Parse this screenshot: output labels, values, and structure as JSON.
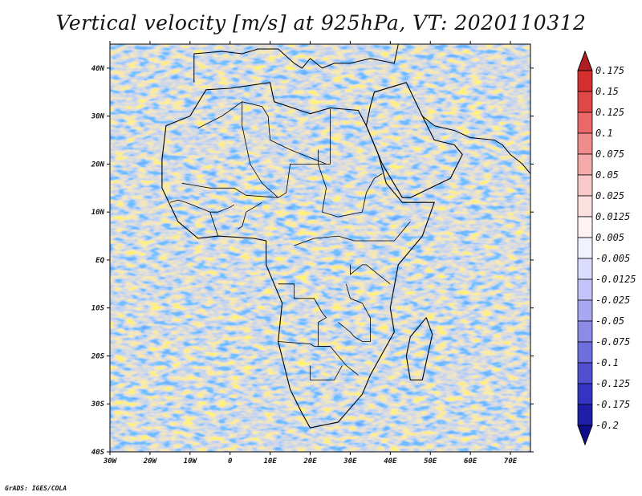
{
  "title": "Vertical velocity [m/s] at 925hPa, VT: 2020110312",
  "credit": "GrADS: IGES/COLA",
  "map": {
    "lon_range": [
      -30,
      75
    ],
    "lat_range": [
      -40,
      45
    ],
    "lat_ticks": [
      {
        "value": 40,
        "label": "40N"
      },
      {
        "value": 30,
        "label": "30N"
      },
      {
        "value": 20,
        "label": "20N"
      },
      {
        "value": 10,
        "label": "10N"
      },
      {
        "value": 0,
        "label": "EQ"
      },
      {
        "value": -10,
        "label": "10S"
      },
      {
        "value": -20,
        "label": "20S"
      },
      {
        "value": -30,
        "label": "30S"
      },
      {
        "value": -40,
        "label": "40S"
      }
    ],
    "lon_ticks": [
      {
        "value": -30,
        "label": "30W"
      },
      {
        "value": -20,
        "label": "20W"
      },
      {
        "value": -10,
        "label": "10W"
      },
      {
        "value": 0,
        "label": "0"
      },
      {
        "value": 10,
        "label": "10E"
      },
      {
        "value": 20,
        "label": "20E"
      },
      {
        "value": 30,
        "label": "30E"
      },
      {
        "value": 40,
        "label": "40E"
      },
      {
        "value": 50,
        "label": "50E"
      },
      {
        "value": 60,
        "label": "60E"
      },
      {
        "value": 70,
        "label": "70E"
      }
    ],
    "africa_outline": [
      [
        -17,
        21
      ],
      [
        -16,
        28
      ],
      [
        -10,
        30
      ],
      [
        -6,
        35.5
      ],
      [
        0,
        35.8
      ],
      [
        10,
        37
      ],
      [
        11,
        33
      ],
      [
        20,
        30.5
      ],
      [
        25,
        31.7
      ],
      [
        32,
        31.2
      ],
      [
        34,
        28
      ],
      [
        37,
        22
      ],
      [
        39,
        16
      ],
      [
        43,
        12
      ],
      [
        51,
        12
      ],
      [
        48,
        5
      ],
      [
        42,
        -1
      ],
      [
        40,
        -10
      ],
      [
        41,
        -15
      ],
      [
        35,
        -24
      ],
      [
        33,
        -28
      ],
      [
        27,
        -33.8
      ],
      [
        20,
        -35
      ],
      [
        18,
        -32
      ],
      [
        15,
        -27
      ],
      [
        12,
        -17
      ],
      [
        13,
        -9
      ],
      [
        9,
        -1
      ],
      [
        9,
        4
      ],
      [
        6,
        4.5
      ],
      [
        -3,
        5
      ],
      [
        -8,
        4.5
      ],
      [
        -13,
        8
      ],
      [
        -17,
        15
      ],
      [
        -17,
        21
      ]
    ],
    "arabia_outline": [
      [
        34,
        28
      ],
      [
        35,
        32
      ],
      [
        36,
        35
      ],
      [
        44,
        37
      ],
      [
        48,
        30
      ],
      [
        51,
        25
      ],
      [
        56,
        24
      ],
      [
        58,
        22
      ],
      [
        55,
        17
      ],
      [
        45,
        13
      ],
      [
        43,
        13
      ],
      [
        38,
        20
      ],
      [
        34,
        28
      ]
    ],
    "europe_outline": [
      [
        -9,
        37
      ],
      [
        -9,
        43
      ],
      [
        -2,
        43.5
      ],
      [
        3,
        43
      ],
      [
        7,
        44
      ],
      [
        12,
        44
      ],
      [
        16,
        41
      ],
      [
        18,
        40
      ],
      [
        20,
        42
      ],
      [
        23,
        40
      ],
      [
        26,
        41
      ],
      [
        30,
        41
      ],
      [
        35,
        42
      ],
      [
        41,
        41
      ],
      [
        42,
        45
      ]
    ],
    "madagascar_outline": [
      [
        49,
        -12
      ],
      [
        50.5,
        -15.5
      ],
      [
        48,
        -25
      ],
      [
        45,
        -25
      ],
      [
        44,
        -20
      ],
      [
        45,
        -16
      ],
      [
        49,
        -12
      ]
    ],
    "iran_coast": [
      [
        48,
        30
      ],
      [
        51,
        28
      ],
      [
        56,
        27
      ],
      [
        60,
        25.5
      ],
      [
        66,
        25
      ],
      [
        68,
        24
      ],
      [
        70,
        22
      ],
      [
        73,
        20
      ],
      [
        75,
        18
      ]
    ],
    "borders": [
      [
        [
          -8,
          27.5
        ],
        [
          -2,
          30
        ],
        [
          3,
          33
        ],
        [
          8,
          32
        ],
        [
          9.5,
          30
        ],
        [
          10,
          25
        ],
        [
          15,
          23
        ],
        [
          24,
          20
        ],
        [
          25,
          20
        ],
        [
          25,
          22
        ],
        [
          25,
          31.5
        ]
      ],
      [
        [
          -12,
          16
        ],
        [
          -5,
          15
        ],
        [
          1,
          15
        ],
        [
          4,
          13.5
        ],
        [
          12,
          13
        ],
        [
          14,
          14
        ],
        [
          15,
          20
        ],
        [
          24,
          20
        ]
      ],
      [
        [
          22,
          23
        ],
        [
          22,
          20
        ],
        [
          24,
          15
        ],
        [
          23,
          10
        ],
        [
          27,
          9
        ],
        [
          33,
          10
        ],
        [
          34,
          14
        ],
        [
          36,
          17
        ],
        [
          38,
          18
        ]
      ],
      [
        [
          16,
          3
        ],
        [
          21,
          4.5
        ],
        [
          27,
          5
        ],
        [
          31,
          4
        ],
        [
          35,
          4
        ],
        [
          41,
          4
        ],
        [
          42,
          5
        ],
        [
          45,
          8
        ]
      ],
      [
        [
          12,
          -5
        ],
        [
          16,
          -5
        ],
        [
          16,
          -8
        ],
        [
          21,
          -8
        ],
        [
          23,
          -11
        ],
        [
          24,
          -12
        ],
        [
          22,
          -13
        ],
        [
          22,
          -18
        ],
        [
          25,
          -18
        ]
      ],
      [
        [
          12,
          -17
        ],
        [
          20,
          -17.5
        ],
        [
          21,
          -18
        ],
        [
          25,
          -18
        ],
        [
          29,
          -22
        ],
        [
          32,
          -24
        ]
      ],
      [
        [
          20,
          -22
        ],
        [
          20,
          -25
        ],
        [
          26,
          -25
        ],
        [
          28,
          -22
        ]
      ],
      [
        [
          30,
          -1
        ],
        [
          30,
          -3
        ],
        [
          33,
          -1
        ],
        [
          34,
          -1
        ],
        [
          37,
          -3
        ],
        [
          40,
          -5
        ]
      ],
      [
        [
          29,
          -5
        ],
        [
          30,
          -8
        ],
        [
          33,
          -9
        ],
        [
          35,
          -12
        ],
        [
          35,
          -17
        ],
        [
          33,
          -17
        ],
        [
          31,
          -16
        ],
        [
          30,
          -15
        ],
        [
          27,
          -13
        ]
      ],
      [
        [
          8,
          12
        ],
        [
          4,
          10
        ],
        [
          3,
          7
        ],
        [
          2,
          6.5
        ]
      ],
      [
        [
          -5,
          10
        ],
        [
          -3,
          10
        ],
        [
          0,
          11
        ],
        [
          1,
          11.5
        ]
      ],
      [
        [
          -15,
          12
        ],
        [
          -13,
          12.5
        ],
        [
          -11,
          12
        ],
        [
          -8,
          11
        ],
        [
          -5,
          10
        ],
        [
          -3,
          5
        ]
      ],
      [
        [
          3,
          33
        ],
        [
          3,
          28
        ],
        [
          5,
          20
        ],
        [
          8,
          16
        ],
        [
          12,
          13
        ]
      ]
    ]
  },
  "colorbar": {
    "colors": [
      "#b01e22",
      "#d43030",
      "#e04848",
      "#ea6868",
      "#f08c8c",
      "#f5aaaa",
      "#f9c8c8",
      "#fce0e0",
      "#fff2f2",
      "#f2f2ff",
      "#dcdcff",
      "#c4c4fa",
      "#a8a8f2",
      "#8c8ce8",
      "#6e6edc",
      "#5050d0",
      "#3434c2",
      "#1e1ea8",
      "#0e0e8a"
    ],
    "labels": [
      "0.175",
      "0.15",
      "0.125",
      "0.1",
      "0.075",
      "0.05",
      "0.025",
      "0.0125",
      "0.005",
      "-0.005",
      "-0.0125",
      "-0.025",
      "-0.05",
      "-0.075",
      "-0.1",
      "-0.125",
      "-0.175",
      "-0.2"
    ]
  }
}
